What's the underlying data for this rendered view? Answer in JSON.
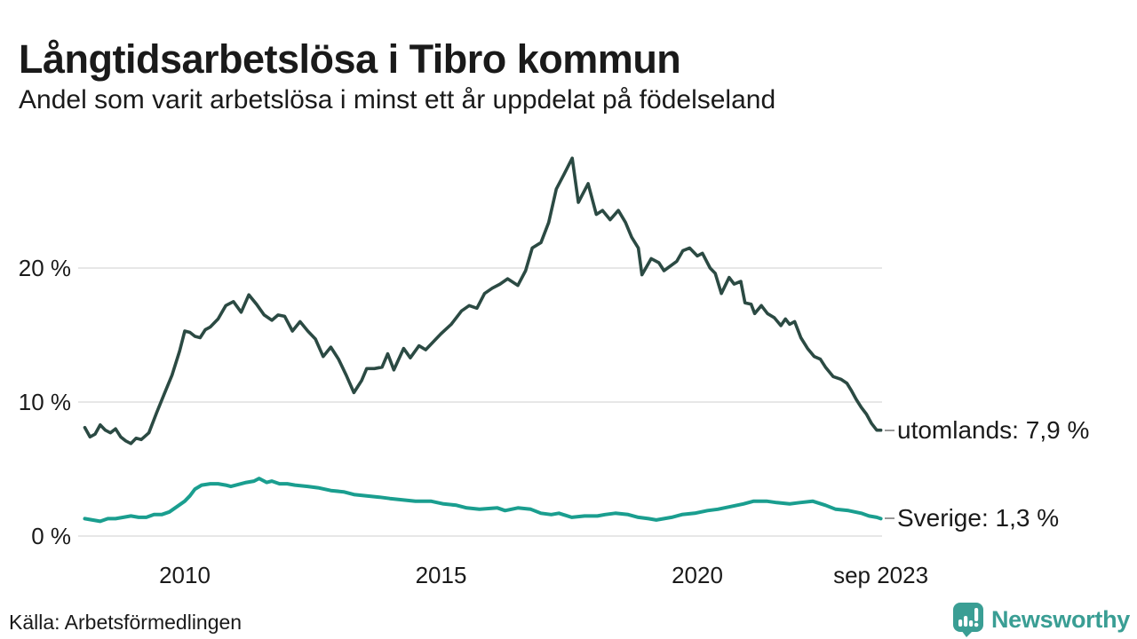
{
  "chart_data": {
    "type": "line",
    "title": "Långtidsarbetslösa i Tibro kommun",
    "subtitle": "Andel som varit arbetslösa i minst ett år uppdelat på födelseland",
    "source": "Källa: Arbetsförmedlingen",
    "background": "#ffffff",
    "grid": "horizontal",
    "grid_color": "#e7e7e7",
    "axis_text_color": "#1a1a1a",
    "leader_color": "#999999",
    "legend_position": "end-labels-right",
    "x_axis": {
      "unit": "year",
      "range": [
        2008.05,
        2023.58
      ],
      "ticks": [
        {
          "t": 2010,
          "label": "2010"
        },
        {
          "t": 2015,
          "label": "2015"
        },
        {
          "t": 2020,
          "label": "2020"
        },
        {
          "t": 2023.58,
          "label": "sep 2023"
        }
      ]
    },
    "y_axis": {
      "unit": "%",
      "range": [
        0,
        29
      ],
      "ticks": [
        {
          "v": 20,
          "label": "20 %"
        },
        {
          "v": 10,
          "label": "10 %"
        },
        {
          "v": 0,
          "label": "0 %"
        }
      ]
    },
    "series": [
      {
        "name": "utomlands",
        "end_label": "utomlands: 7,9 %",
        "last_value": 7.9,
        "color": "#2b4a43",
        "stroke_width": 3.6,
        "points": [
          [
            2008.05,
            8.1
          ],
          [
            2008.15,
            7.4
          ],
          [
            2008.25,
            7.6
          ],
          [
            2008.35,
            8.3
          ],
          [
            2008.45,
            7.9
          ],
          [
            2008.55,
            7.7
          ],
          [
            2008.65,
            8.0
          ],
          [
            2008.75,
            7.4
          ],
          [
            2008.85,
            7.1
          ],
          [
            2008.95,
            6.9
          ],
          [
            2009.05,
            7.3
          ],
          [
            2009.15,
            7.2
          ],
          [
            2009.3,
            7.7
          ],
          [
            2009.45,
            9.2
          ],
          [
            2009.6,
            10.6
          ],
          [
            2009.75,
            12.0
          ],
          [
            2009.9,
            13.8
          ],
          [
            2010.0,
            15.3
          ],
          [
            2010.1,
            15.2
          ],
          [
            2010.2,
            14.9
          ],
          [
            2010.3,
            14.8
          ],
          [
            2010.4,
            15.4
          ],
          [
            2010.5,
            15.6
          ],
          [
            2010.65,
            16.2
          ],
          [
            2010.8,
            17.2
          ],
          [
            2010.95,
            17.5
          ],
          [
            2011.1,
            16.7
          ],
          [
            2011.25,
            18.0
          ],
          [
            2011.4,
            17.3
          ],
          [
            2011.55,
            16.5
          ],
          [
            2011.7,
            16.1
          ],
          [
            2011.82,
            16.5
          ],
          [
            2011.95,
            16.4
          ],
          [
            2012.1,
            15.3
          ],
          [
            2012.25,
            16.0
          ],
          [
            2012.4,
            15.3
          ],
          [
            2012.55,
            14.7
          ],
          [
            2012.7,
            13.4
          ],
          [
            2012.85,
            14.1
          ],
          [
            2013.0,
            13.2
          ],
          [
            2013.15,
            12.0
          ],
          [
            2013.3,
            10.7
          ],
          [
            2013.45,
            11.6
          ],
          [
            2013.55,
            12.5
          ],
          [
            2013.7,
            12.5
          ],
          [
            2013.85,
            12.6
          ],
          [
            2013.96,
            13.6
          ],
          [
            2014.08,
            12.4
          ],
          [
            2014.27,
            14.0
          ],
          [
            2014.4,
            13.3
          ],
          [
            2014.57,
            14.2
          ],
          [
            2014.7,
            13.9
          ],
          [
            2014.85,
            14.5
          ],
          [
            2015.0,
            15.1
          ],
          [
            2015.2,
            15.8
          ],
          [
            2015.4,
            16.8
          ],
          [
            2015.55,
            17.2
          ],
          [
            2015.7,
            17.0
          ],
          [
            2015.85,
            18.1
          ],
          [
            2016.0,
            18.5
          ],
          [
            2016.15,
            18.8
          ],
          [
            2016.3,
            19.2
          ],
          [
            2016.5,
            18.7
          ],
          [
            2016.65,
            19.8
          ],
          [
            2016.78,
            21.5
          ],
          [
            2016.95,
            21.9
          ],
          [
            2017.1,
            23.4
          ],
          [
            2017.25,
            25.9
          ],
          [
            2017.4,
            27.0
          ],
          [
            2017.56,
            28.2
          ],
          [
            2017.68,
            24.9
          ],
          [
            2017.87,
            26.3
          ],
          [
            2018.03,
            24.0
          ],
          [
            2018.15,
            24.3
          ],
          [
            2018.3,
            23.6
          ],
          [
            2018.46,
            24.3
          ],
          [
            2018.6,
            23.4
          ],
          [
            2018.72,
            22.3
          ],
          [
            2018.85,
            21.5
          ],
          [
            2018.92,
            19.5
          ],
          [
            2019.1,
            20.7
          ],
          [
            2019.25,
            20.4
          ],
          [
            2019.35,
            19.8
          ],
          [
            2019.6,
            20.5
          ],
          [
            2019.72,
            21.3
          ],
          [
            2019.85,
            21.5
          ],
          [
            2020.0,
            20.9
          ],
          [
            2020.1,
            21.1
          ],
          [
            2020.25,
            20.0
          ],
          [
            2020.35,
            19.6
          ],
          [
            2020.47,
            18.1
          ],
          [
            2020.62,
            19.3
          ],
          [
            2020.72,
            18.8
          ],
          [
            2020.85,
            19.0
          ],
          [
            2020.93,
            17.4
          ],
          [
            2021.05,
            17.3
          ],
          [
            2021.12,
            16.6
          ],
          [
            2021.25,
            17.2
          ],
          [
            2021.37,
            16.6
          ],
          [
            2021.5,
            16.3
          ],
          [
            2021.63,
            15.7
          ],
          [
            2021.72,
            16.2
          ],
          [
            2021.8,
            15.8
          ],
          [
            2021.9,
            16.0
          ],
          [
            2022.02,
            14.8
          ],
          [
            2022.15,
            14.0
          ],
          [
            2022.28,
            13.4
          ],
          [
            2022.4,
            13.2
          ],
          [
            2022.5,
            12.6
          ],
          [
            2022.65,
            11.9
          ],
          [
            2022.8,
            11.7
          ],
          [
            2022.92,
            11.4
          ],
          [
            2023.0,
            10.9
          ],
          [
            2023.1,
            10.2
          ],
          [
            2023.2,
            9.6
          ],
          [
            2023.3,
            9.1
          ],
          [
            2023.4,
            8.4
          ],
          [
            2023.5,
            7.9
          ],
          [
            2023.58,
            7.9
          ]
        ]
      },
      {
        "name": "Sverige",
        "end_label": "Sverige: 1,3 %",
        "last_value": 1.3,
        "color": "#1a9e8f",
        "stroke_width": 4,
        "points": [
          [
            2008.05,
            1.3
          ],
          [
            2008.2,
            1.2
          ],
          [
            2008.35,
            1.1
          ],
          [
            2008.5,
            1.3
          ],
          [
            2008.65,
            1.3
          ],
          [
            2008.8,
            1.4
          ],
          [
            2008.95,
            1.5
          ],
          [
            2009.1,
            1.4
          ],
          [
            2009.25,
            1.4
          ],
          [
            2009.4,
            1.6
          ],
          [
            2009.55,
            1.6
          ],
          [
            2009.7,
            1.8
          ],
          [
            2009.85,
            2.2
          ],
          [
            2010.0,
            2.6
          ],
          [
            2010.1,
            3.0
          ],
          [
            2010.2,
            3.5
          ],
          [
            2010.33,
            3.8
          ],
          [
            2010.5,
            3.9
          ],
          [
            2010.65,
            3.9
          ],
          [
            2010.8,
            3.8
          ],
          [
            2010.9,
            3.7
          ],
          [
            2011.0,
            3.8
          ],
          [
            2011.2,
            4.0
          ],
          [
            2011.35,
            4.1
          ],
          [
            2011.45,
            4.3
          ],
          [
            2011.6,
            4.0
          ],
          [
            2011.7,
            4.1
          ],
          [
            2011.85,
            3.9
          ],
          [
            2012.0,
            3.9
          ],
          [
            2012.15,
            3.8
          ],
          [
            2012.4,
            3.7
          ],
          [
            2012.6,
            3.6
          ],
          [
            2012.85,
            3.4
          ],
          [
            2013.1,
            3.3
          ],
          [
            2013.3,
            3.1
          ],
          [
            2013.55,
            3.0
          ],
          [
            2013.8,
            2.9
          ],
          [
            2014.0,
            2.8
          ],
          [
            2014.25,
            2.7
          ],
          [
            2014.5,
            2.6
          ],
          [
            2014.8,
            2.6
          ],
          [
            2015.05,
            2.4
          ],
          [
            2015.3,
            2.3
          ],
          [
            2015.5,
            2.1
          ],
          [
            2015.75,
            2.0
          ],
          [
            2016.1,
            2.1
          ],
          [
            2016.25,
            1.9
          ],
          [
            2016.5,
            2.1
          ],
          [
            2016.75,
            2.0
          ],
          [
            2016.95,
            1.7
          ],
          [
            2017.15,
            1.6
          ],
          [
            2017.3,
            1.7
          ],
          [
            2017.55,
            1.4
          ],
          [
            2017.8,
            1.5
          ],
          [
            2018.05,
            1.5
          ],
          [
            2018.2,
            1.6
          ],
          [
            2018.4,
            1.7
          ],
          [
            2018.65,
            1.6
          ],
          [
            2018.85,
            1.4
          ],
          [
            2019.05,
            1.3
          ],
          [
            2019.2,
            1.2
          ],
          [
            2019.5,
            1.4
          ],
          [
            2019.7,
            1.6
          ],
          [
            2019.95,
            1.7
          ],
          [
            2020.2,
            1.9
          ],
          [
            2020.4,
            2.0
          ],
          [
            2020.65,
            2.2
          ],
          [
            2020.9,
            2.4
          ],
          [
            2021.1,
            2.6
          ],
          [
            2021.35,
            2.6
          ],
          [
            2021.55,
            2.5
          ],
          [
            2021.8,
            2.4
          ],
          [
            2022.0,
            2.5
          ],
          [
            2022.25,
            2.6
          ],
          [
            2022.5,
            2.3
          ],
          [
            2022.7,
            2.0
          ],
          [
            2022.95,
            1.9
          ],
          [
            2023.2,
            1.7
          ],
          [
            2023.35,
            1.5
          ],
          [
            2023.5,
            1.4
          ],
          [
            2023.58,
            1.3
          ]
        ]
      }
    ]
  },
  "branding": {
    "wordmark": "Newsworthy",
    "color": "#3a9e94",
    "icon": "newsworthy-pin-bar-chart-icon"
  }
}
